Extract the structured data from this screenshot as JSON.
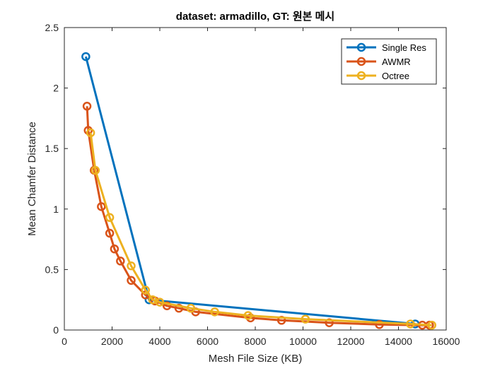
{
  "chart_data": {
    "type": "line",
    "title": "dataset: armadillo, GT: 원본 메시",
    "xlabel": "Mesh File Size (KB)",
    "ylabel": "Mean Chamfer Distance",
    "xlim": [
      0,
      16000
    ],
    "ylim": [
      0,
      2.5
    ],
    "xticks": [
      0,
      2000,
      4000,
      6000,
      8000,
      10000,
      12000,
      14000,
      16000
    ],
    "yticks": [
      0,
      0.5,
      1,
      1.5,
      2,
      2.5
    ],
    "xtick_labels": [
      "0",
      "2000",
      "4000",
      "6000",
      "8000",
      "10000",
      "12000",
      "14000",
      "16000"
    ],
    "ytick_labels": [
      "0",
      "0.5",
      "1",
      "1.5",
      "2",
      "2.5"
    ],
    "grid": false,
    "legend_position": "top-right",
    "series": [
      {
        "name": "Single Res",
        "color": "#0072BD",
        "points": [
          [
            900,
            2.26
          ],
          [
            3550,
            0.25
          ],
          [
            14700,
            0.05
          ]
        ]
      },
      {
        "name": "AWMR",
        "color": "#D95319",
        "points": [
          [
            950,
            1.85
          ],
          [
            1000,
            1.65
          ],
          [
            1250,
            1.32
          ],
          [
            1550,
            1.02
          ],
          [
            1900,
            0.8
          ],
          [
            2100,
            0.67
          ],
          [
            2350,
            0.57
          ],
          [
            2800,
            0.41
          ],
          [
            3400,
            0.29
          ],
          [
            3800,
            0.24
          ],
          [
            4300,
            0.2
          ],
          [
            4800,
            0.18
          ],
          [
            5500,
            0.15
          ],
          [
            7800,
            0.1
          ],
          [
            9100,
            0.08
          ],
          [
            11100,
            0.06
          ],
          [
            13200,
            0.045
          ],
          [
            15000,
            0.04
          ],
          [
            15300,
            0.04
          ]
        ]
      },
      {
        "name": "Octree",
        "color": "#EDB120",
        "points": [
          [
            1100,
            1.63
          ],
          [
            1300,
            1.32
          ],
          [
            1900,
            0.93
          ],
          [
            2800,
            0.53
          ],
          [
            3400,
            0.33
          ],
          [
            3700,
            0.25
          ],
          [
            4000,
            0.23
          ],
          [
            5300,
            0.18
          ],
          [
            6300,
            0.15
          ],
          [
            7700,
            0.12
          ],
          [
            10100,
            0.09
          ],
          [
            14500,
            0.05
          ],
          [
            15400,
            0.04
          ]
        ]
      }
    ]
  }
}
